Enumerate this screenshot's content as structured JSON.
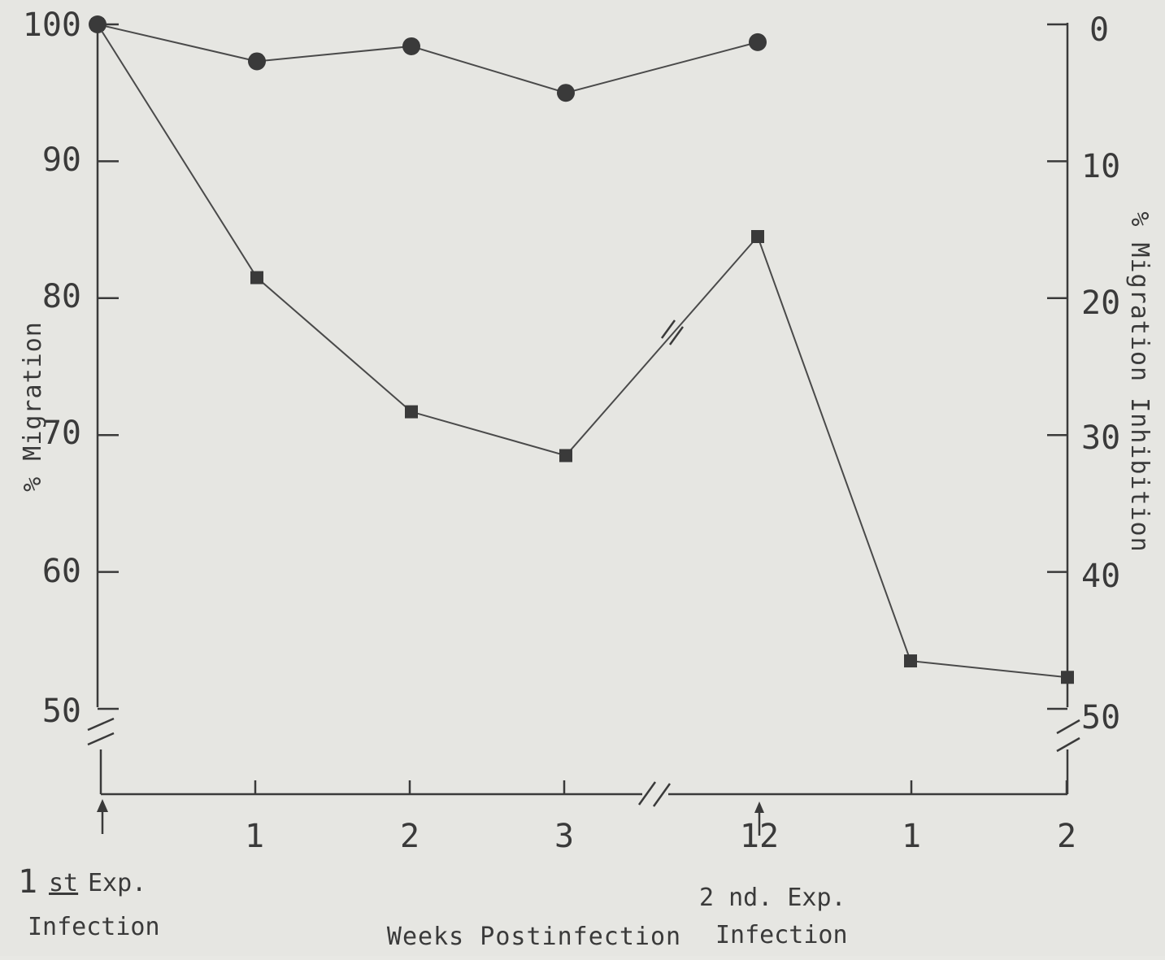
{
  "chart_data": {
    "type": "line",
    "title": "",
    "xlabel": "Weeks Postinfection",
    "ylabel": "% Migration",
    "ylabel_right": "% Migration Inhibition",
    "x_tick_labels": [
      "1",
      "2",
      "3",
      "12",
      "1",
      "2"
    ],
    "y_ticks_left": [
      "100",
      "90",
      "80",
      "70",
      "60",
      "50"
    ],
    "y_ticks_right": [
      "0",
      "10",
      "20",
      "30",
      "40",
      "50"
    ],
    "ylim": [
      50,
      100
    ],
    "annotations": {
      "first_exp_line1_num": "1",
      "first_exp_line1_sup": "st",
      "first_exp_line1_rest": "Exp.",
      "first_exp_line2": "Infection",
      "second_exp_line1": "2 nd. Exp.",
      "second_exp_line2": "Infection"
    },
    "series": [
      {
        "marker": "circle",
        "points": [
          {
            "x": "1st Exp. Infection",
            "y": 100
          },
          {
            "x": "1",
            "y": 97.3
          },
          {
            "x": "2",
            "y": 98.4
          },
          {
            "x": "3",
            "y": 95
          },
          {
            "x": "12",
            "y": 98.7
          }
        ]
      },
      {
        "marker": "square",
        "points": [
          {
            "x": "1st Exp. Infection",
            "y": 100
          },
          {
            "x": "1",
            "y": 81.5
          },
          {
            "x": "2",
            "y": 71.7
          },
          {
            "x": "3",
            "y": 68.5
          },
          {
            "x": "12",
            "y": 84.5
          },
          {
            "x": "1",
            "y": 53.5
          },
          {
            "x": "2",
            "y": 52.3
          }
        ]
      }
    ],
    "colors": {
      "ink": "#3a3a3a",
      "background": "#e6e6e2"
    }
  }
}
